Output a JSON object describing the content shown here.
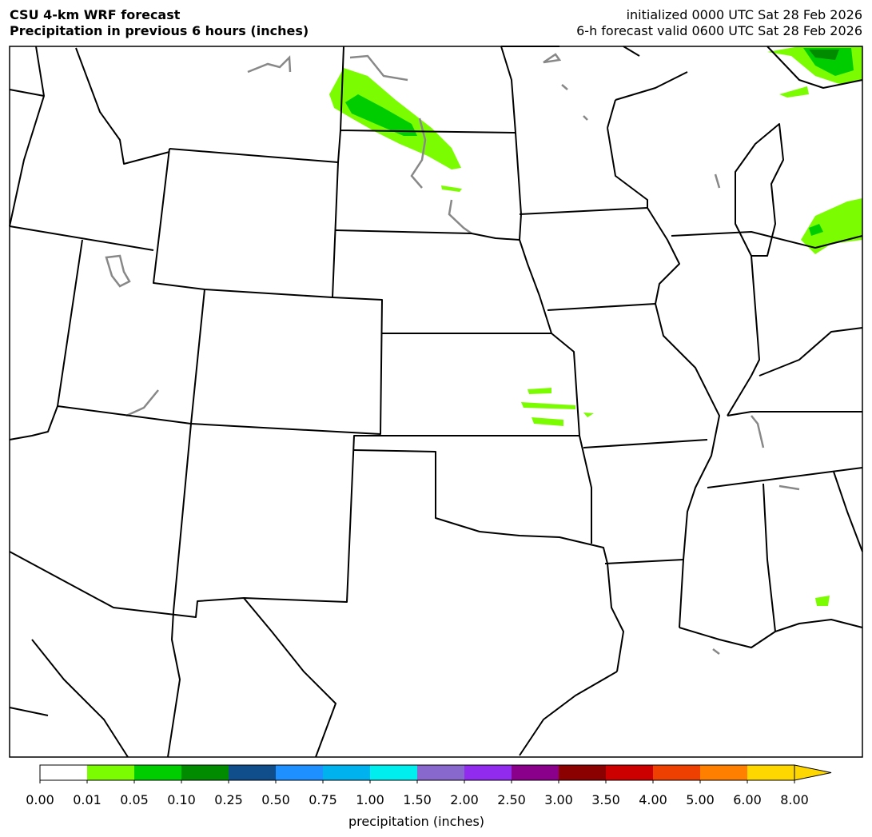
{
  "header": {
    "title_left": [
      "CSU 4-km WRF forecast",
      "Precipitation in previous 6 hours (inches)"
    ],
    "title_right": [
      "initialized 0000 UTC Sat 28 Feb 2026",
      "6-h forecast valid 0600 UTC Sat 28 Feb 2026"
    ]
  },
  "colorbar": {
    "ticks": [
      "0.00",
      "0.01",
      "0.05",
      "0.10",
      "0.25",
      "0.50",
      "0.75",
      "1.00",
      "1.50",
      "2.00",
      "2.50",
      "3.00",
      "3.50",
      "4.00",
      "5.00",
      "6.00",
      "8.00"
    ],
    "colors": [
      "#ffffff",
      "#7cfc00",
      "#00cd00",
      "#008b00",
      "#104e8b",
      "#1e90ff",
      "#00b2ee",
      "#00eeee",
      "#8968cd",
      "#912cee",
      "#8b008b",
      "#8b0000",
      "#cd0000",
      "#ee4000",
      "#ff7f00",
      "#ffd700"
    ],
    "label": "precipitation (inches)"
  }
}
